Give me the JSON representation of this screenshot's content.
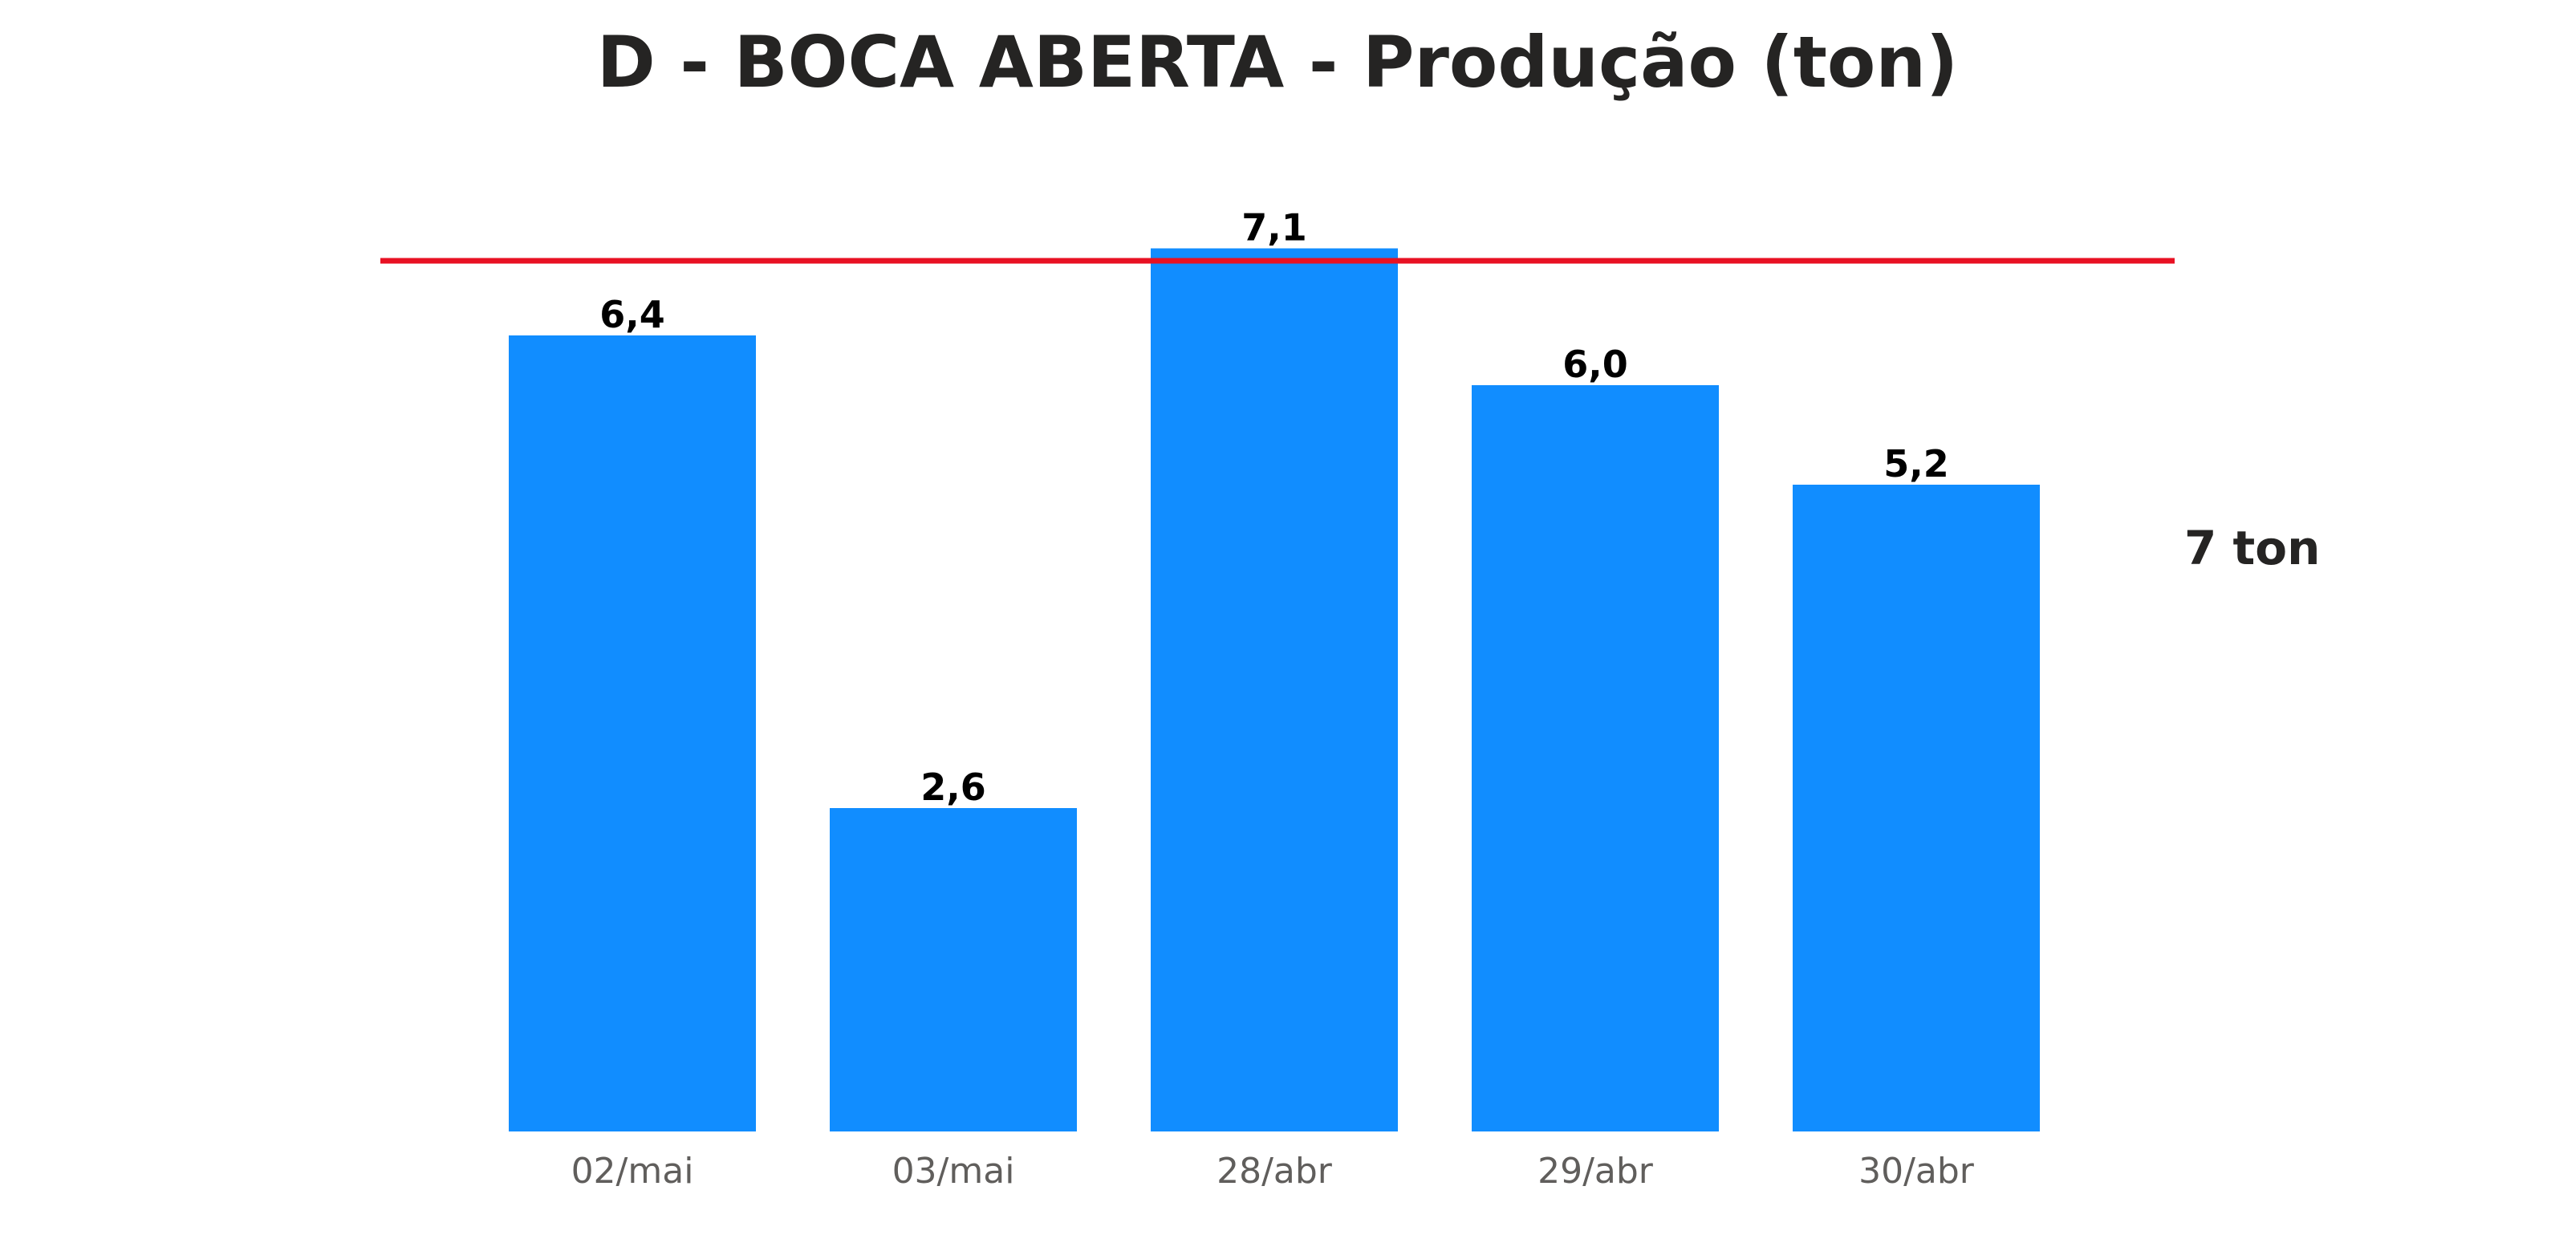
{
  "chart_data": {
    "type": "bar",
    "title": "D - BOCA ABERTA - Produção (ton)",
    "categories": [
      "02/mai",
      "03/mai",
      "28/abr",
      "29/abr",
      "30/abr"
    ],
    "values": [
      6.4,
      2.6,
      7.1,
      6.0,
      5.2
    ],
    "data_labels": [
      "6,4",
      "2,6",
      "7,1",
      "6,0",
      "5,2"
    ],
    "target": {
      "value": 7,
      "label": "7 ton",
      "color": "#E81123"
    },
    "ylim": [
      0,
      7.2
    ],
    "bar_color": "#118DFF",
    "grid": false,
    "xlabel": "",
    "ylabel": ""
  }
}
